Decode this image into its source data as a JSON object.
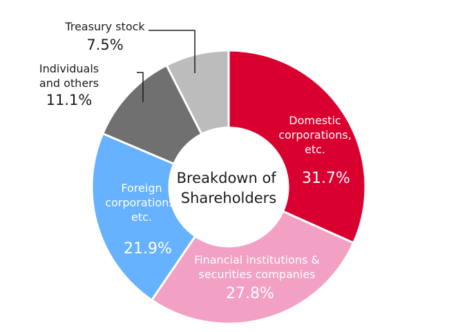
{
  "chart_data": {
    "type": "pie",
    "variant": "donut",
    "title": [
      "Breakdown of",
      "Shareholders"
    ],
    "slices": [
      {
        "name": [
          "Domestic",
          "corporations,",
          "etc."
        ],
        "value": 31.7,
        "pct_label": "31.7%",
        "color": "#d9002f"
      },
      {
        "name": [
          "Financial institutions &",
          "securities companies"
        ],
        "value": 27.8,
        "pct_label": "27.8%",
        "color": "#f2a0c4"
      },
      {
        "name": [
          "Foreign",
          "corporations,",
          "etc."
        ],
        "value": 21.9,
        "pct_label": "21.9%",
        "color": "#66b2ff"
      },
      {
        "name": [
          "Individuals",
          "and others"
        ],
        "value": 11.1,
        "pct_label": "11.1%",
        "color": "#707070"
      },
      {
        "name": [
          "Treasury stock"
        ],
        "value": 7.5,
        "pct_label": "7.5%",
        "color": "#bcbcbc"
      }
    ]
  }
}
